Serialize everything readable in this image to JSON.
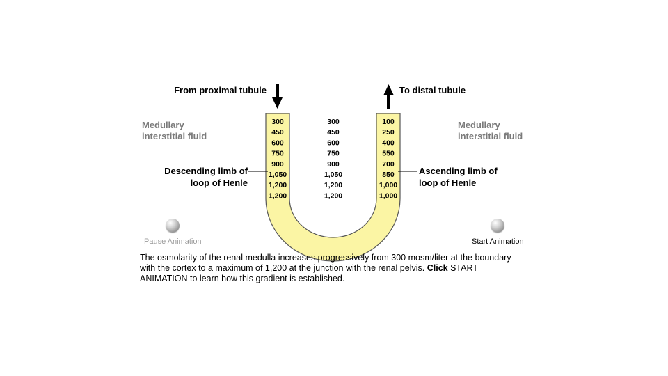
{
  "labels": {
    "from_proximal": "From proximal tubule",
    "to_distal": "To distal tubule",
    "left_fluid_line1": "Medullary",
    "left_fluid_line2": "interstitial fluid",
    "right_fluid_line1": "Medullary",
    "right_fluid_line2": "interstitial fluid",
    "descending_line1": "Descending limb of",
    "descending_line2": "loop of Henle",
    "ascending_line1": "Ascending limb of",
    "ascending_line2": "loop of Henle"
  },
  "columns": {
    "descending": [
      "300",
      "450",
      "600",
      "750",
      "900",
      "1,050",
      "1,200",
      "1,200"
    ],
    "interstitial": [
      "300",
      "450",
      "600",
      "750",
      "900",
      "1,050",
      "1,200",
      "1,200"
    ],
    "ascending": [
      "100",
      "250",
      "400",
      "550",
      "700",
      "850",
      "1,000",
      "1,000"
    ]
  },
  "buttons": {
    "pause": "Pause Animation",
    "start": "Start Animation"
  },
  "caption": {
    "text": "The osmolarity of the renal medulla increases progressively from 300 mosm/liter at the boundary with the cortex to a maximum of 1,200 at the junction with the renal pelvis. ",
    "bold": "Click",
    "tail": " START ANIMATION to learn how this gradient is established."
  },
  "colors": {
    "tube_fill": "#fbf5a4",
    "tube_stroke": "#555555",
    "pause_text": "#9a9a9a"
  }
}
